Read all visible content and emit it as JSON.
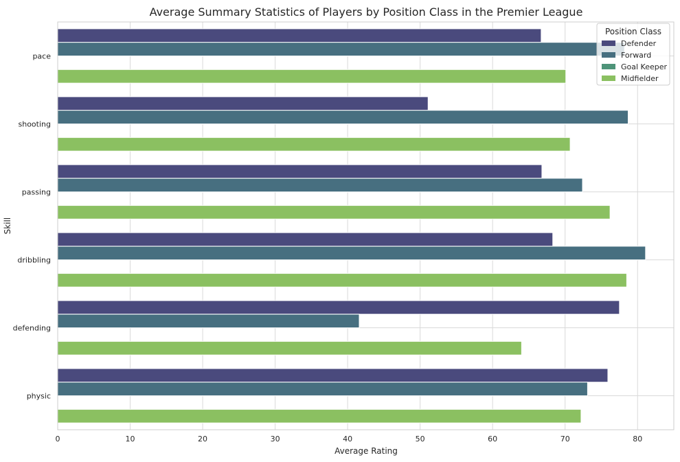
{
  "chart_data": {
    "type": "bar",
    "orientation": "horizontal",
    "title": "Average Summary Statistics of Players by Position Class in the Premier League",
    "xlabel": "Average Rating",
    "ylabel": "Skill",
    "xlim": [
      0,
      85
    ],
    "xticks": [
      0,
      10,
      20,
      30,
      40,
      50,
      60,
      70,
      80
    ],
    "grid": true,
    "legend_title": "Position Class",
    "legend_position": "top-right",
    "categories": [
      "pace",
      "shooting",
      "passing",
      "dribbling",
      "defending",
      "physic"
    ],
    "series": [
      {
        "name": "Defender",
        "color": "#4a4a7d",
        "values": [
          66.7,
          51.1,
          66.8,
          68.3,
          77.5,
          75.9
        ]
      },
      {
        "name": "Forward",
        "color": "#476f80",
        "values": [
          78.2,
          78.7,
          72.4,
          81.1,
          41.6,
          73.1
        ]
      },
      {
        "name": "Goal Keeper",
        "color": "#4e9479",
        "values": [
          null,
          null,
          null,
          null,
          null,
          null
        ]
      },
      {
        "name": "Midfielder",
        "color": "#8bc061",
        "values": [
          70.1,
          70.7,
          76.2,
          78.5,
          64.0,
          72.2
        ]
      }
    ]
  }
}
